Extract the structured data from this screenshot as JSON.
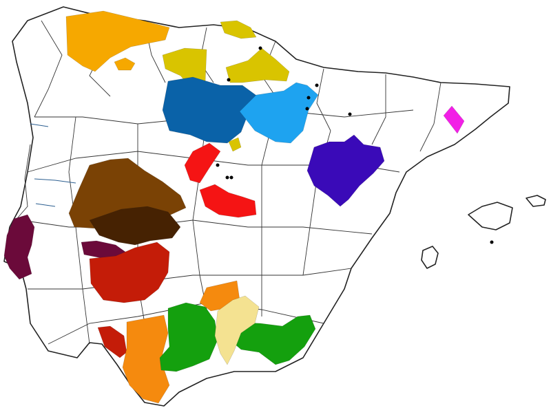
{
  "map": {
    "regions": [
      {
        "id": "asturias",
        "color": "#F6A800"
      },
      {
        "id": "cantabria-basque",
        "color": "#D9C400"
      },
      {
        "id": "castile-north",
        "color": "#0A62A8"
      },
      {
        "id": "aragon-west",
        "color": "#1EA3F0"
      },
      {
        "id": "teruel",
        "color": "#3A0AB8"
      },
      {
        "id": "catalonia-east",
        "color": "#F21FE6"
      },
      {
        "id": "madrid-area",
        "color": "#F51414"
      },
      {
        "id": "extremadura-north",
        "color": "#7A4205"
      },
      {
        "id": "extremadura-dark",
        "color": "#462202"
      },
      {
        "id": "portugal-south",
        "color": "#6B0A3A"
      },
      {
        "id": "badajoz-south",
        "color": "#C41C08"
      },
      {
        "id": "andalusia-west",
        "color": "#F58A0E"
      },
      {
        "id": "andalusia-green",
        "color": "#14A00E"
      },
      {
        "id": "granada-pale",
        "color": "#F4E291"
      }
    ],
    "markers": [
      {
        "id": "dot-1"
      },
      {
        "id": "dot-2"
      },
      {
        "id": "dot-3"
      },
      {
        "id": "dot-4"
      },
      {
        "id": "dot-5"
      },
      {
        "id": "dot-6"
      },
      {
        "id": "dot-7"
      },
      {
        "id": "dot-8"
      },
      {
        "id": "dot-9"
      },
      {
        "id": "dot-10"
      }
    ]
  }
}
